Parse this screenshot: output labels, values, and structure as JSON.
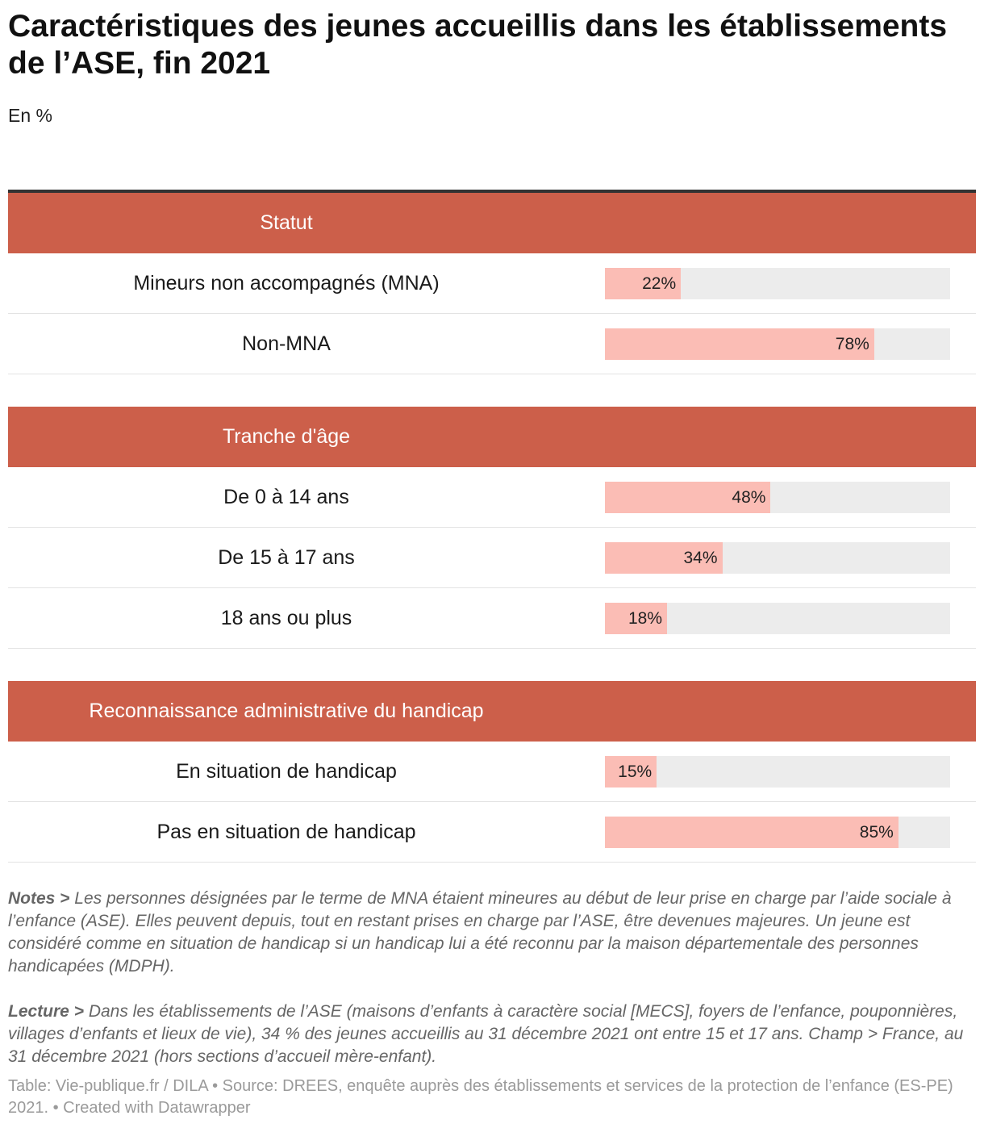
{
  "title": "Caractéristiques des jeunes accueillis dans les établissements de l’ASE, fin 2021",
  "subtitle": "En %",
  "chart_data": {
    "type": "bar",
    "title": "Caractéristiques des jeunes accueillis dans les établissements de l’ASE, fin 2021",
    "unit": "%",
    "xlim": [
      0,
      100
    ],
    "groups": [
      {
        "name": "Statut",
        "categories": [
          "Mineurs non accompagnés (MNA)",
          "Non-MNA"
        ],
        "values": [
          22,
          78
        ],
        "labels": [
          "22%",
          "78%"
        ]
      },
      {
        "name": "Tranche d'âge",
        "categories": [
          "De 0 à 14 ans",
          "De 15 à 17 ans",
          "18 ans ou plus"
        ],
        "values": [
          48,
          34,
          18
        ],
        "labels": [
          "48%",
          "34%",
          "18%"
        ]
      },
      {
        "name": "Reconnaissance administrative du handicap",
        "categories": [
          "En situation de handicap",
          "Pas en situation de handicap"
        ],
        "values": [
          15,
          85
        ],
        "labels": [
          "15%",
          "85%"
        ]
      }
    ]
  },
  "notes": {
    "label": "Notes >",
    "text": "Les personnes désignées par le terme de MNA étaient mineures au début de leur prise en charge par l’aide sociale à l’enfance (ASE). Elles peuvent depuis, tout en restant prises en charge par l’ASE, être devenues majeures. Un jeune est considéré comme en situation de handicap si un handicap lui a été reconnu par la maison départementale des personnes handicapées (MDPH)."
  },
  "lecture": {
    "label": "Lecture >",
    "text": "Dans les établissements de l’ASE (maisons d’enfants à caractère social [MECS], foyers de l’enfance, pouponnières, villages d’enfants et lieux de vie), 34 % des jeunes accueillis au 31 décembre 2021 ont entre 15 et 17 ans. Champ > France, au 31 décembre 2021 (hors sections d’accueil mère-enfant)."
  },
  "footer": "Table: Vie-publique.fr / DILA • Source: DREES, enquête auprès des établissements et services de la protection de l’enfance (ES-PE) 2021.  • Created with Datawrapper",
  "colors": {
    "header": "#cc5f4a",
    "bar": "#fbbdb5",
    "track": "#ececec"
  }
}
